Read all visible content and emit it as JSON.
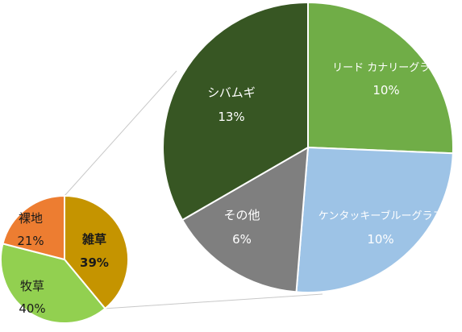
{
  "chart_data": [
    {
      "type": "pie",
      "categories": [
        "雑草",
        "牧草",
        "裸地"
      ],
      "values": [
        39,
        40,
        21
      ],
      "labels": [
        "39%",
        "40%",
        "21%"
      ],
      "colors": [
        "#c59400",
        "#92d050",
        "#ed7d31"
      ],
      "emphasis": [
        true,
        false,
        false
      ]
    },
    {
      "type": "pie",
      "categories": [
        "リード カナリーグラス",
        "ケンタッキーブルーグラス",
        "その他",
        "シバムギ"
      ],
      "values": [
        10,
        10,
        6,
        13
      ],
      "labels": [
        "10%",
        "10%",
        "6%",
        "13%"
      ],
      "colors": [
        "#70ad47",
        "#9dc3e6",
        "#7f7f7f",
        "#375623"
      ],
      "label_colors": [
        "#ffffff",
        "#ffffff",
        "#ffffff",
        "#ffffff"
      ],
      "breakdown_of": "雑草"
    }
  ]
}
